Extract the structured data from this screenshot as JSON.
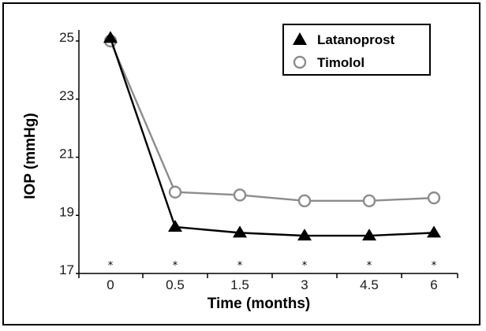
{
  "chart_data": {
    "type": "line",
    "title": "",
    "xlabel": "Time (months)",
    "ylabel": "IOP (mmHg)",
    "categories": [
      "0",
      "0.5",
      "1.5",
      "3",
      "4.5",
      "6"
    ],
    "ylim": [
      17,
      25
    ],
    "yticks": [
      "17",
      "19",
      "21",
      "23",
      "25"
    ],
    "series": [
      {
        "name": "Latanoprost",
        "marker": "filled-triangle",
        "color": "#000000",
        "values": [
          25.1,
          18.6,
          18.4,
          18.3,
          18.3,
          18.4
        ]
      },
      {
        "name": "Timolol",
        "marker": "open-circle",
        "color": "#8c8c8c",
        "values": [
          25.0,
          19.8,
          19.7,
          19.5,
          19.5,
          19.6
        ]
      }
    ],
    "significance_markers": [
      "*",
      "*",
      "*",
      "*",
      "*",
      "*"
    ],
    "legend_position": "top-right",
    "grid": false
  }
}
